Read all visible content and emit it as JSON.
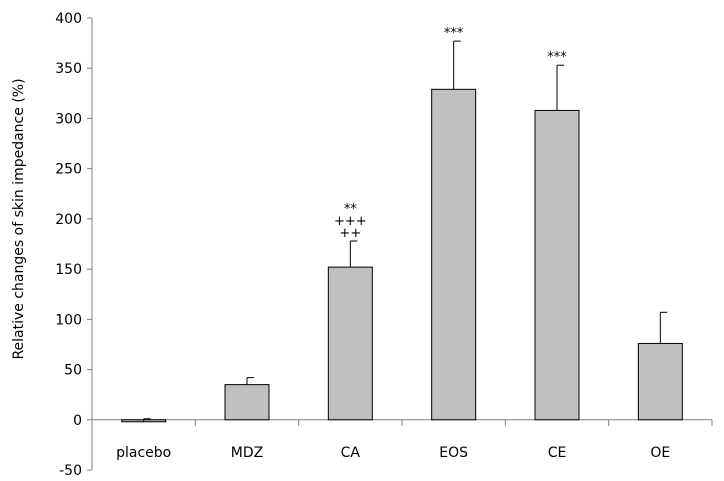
{
  "chart_data": {
    "type": "bar",
    "ylabel": "Relative changes of skin impedance (%)",
    "ylim": [
      -50,
      400
    ],
    "yticks": [
      -50,
      0,
      50,
      100,
      150,
      200,
      250,
      300,
      350,
      400
    ],
    "grid": false,
    "categories": [
      "placebo",
      "MDZ",
      "CA",
      "EOS",
      "CE",
      "OE"
    ],
    "values": [
      -2,
      35,
      152,
      329,
      308,
      76
    ],
    "errors": [
      3,
      7,
      26,
      48,
      45,
      31
    ],
    "annotations": [
      [],
      [],
      [
        "**",
        "+++",
        "++"
      ],
      [
        "***"
      ],
      [
        "***"
      ],
      []
    ],
    "bar_color": "#c0c0c0"
  }
}
